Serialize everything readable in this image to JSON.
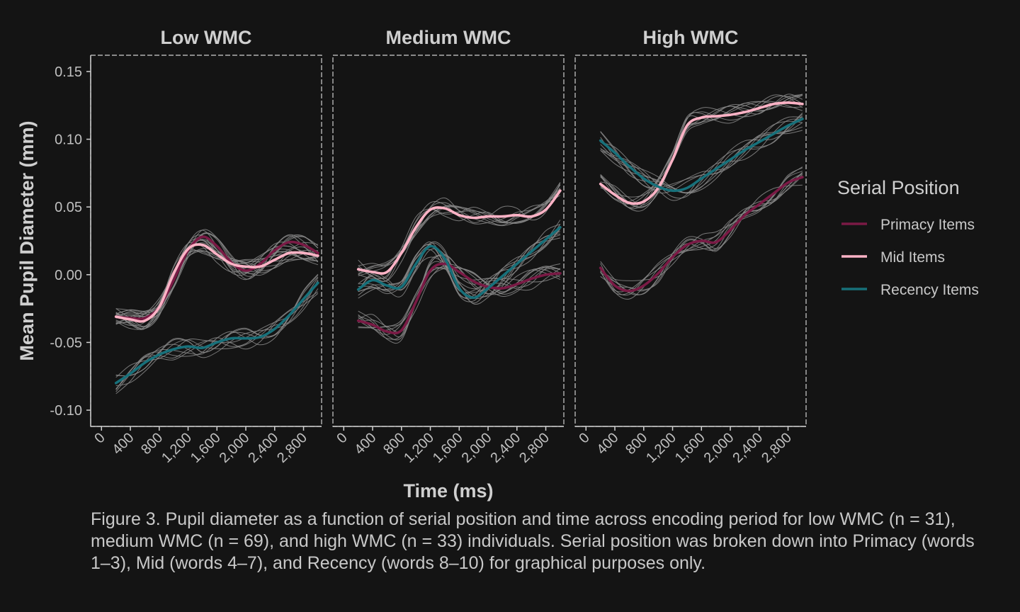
{
  "chart_data": {
    "type": "line",
    "panels": [
      {
        "title": "Low WMC",
        "series": [
          {
            "name": "Primacy Items",
            "x": [
              200,
              400,
              600,
              800,
              1000,
              1200,
              1400,
              1600,
              1800,
              2000,
              2200,
              2400,
              2600,
              2800,
              3000
            ],
            "y": [
              -0.031,
              -0.032,
              -0.032,
              -0.024,
              -0.004,
              0.018,
              0.028,
              0.021,
              0.009,
              0.003,
              0.008,
              0.018,
              0.024,
              0.022,
              0.016
            ]
          },
          {
            "name": "Mid Items",
            "x": [
              200,
              400,
              600,
              800,
              1000,
              1200,
              1400,
              1600,
              1800,
              2000,
              2200,
              2400,
              2600,
              2800,
              3000
            ],
            "y": [
              -0.031,
              -0.033,
              -0.034,
              -0.024,
              0.001,
              0.019,
              0.022,
              0.015,
              0.008,
              0.006,
              0.006,
              0.011,
              0.016,
              0.016,
              0.014
            ]
          },
          {
            "name": "Recency Items",
            "x": [
              200,
              400,
              600,
              800,
              1000,
              1200,
              1400,
              1600,
              1800,
              2000,
              2200,
              2400,
              2600,
              2800,
              3000
            ],
            "y": [
              -0.08,
              -0.073,
              -0.065,
              -0.059,
              -0.055,
              -0.053,
              -0.054,
              -0.05,
              -0.047,
              -0.047,
              -0.046,
              -0.04,
              -0.03,
              -0.018,
              -0.006
            ]
          }
        ]
      },
      {
        "title": "Medium WMC",
        "series": [
          {
            "name": "Primacy Items",
            "x": [
              200,
              400,
              600,
              800,
              1000,
              1200,
              1400,
              1600,
              1800,
              2000,
              2200,
              2400,
              2600,
              2800,
              3000
            ],
            "y": [
              -0.034,
              -0.037,
              -0.042,
              -0.041,
              -0.02,
              0.003,
              0.008,
              0.002,
              -0.005,
              -0.009,
              -0.01,
              -0.007,
              -0.003,
              0.0,
              0.001
            ]
          },
          {
            "name": "Mid Items",
            "x": [
              200,
              400,
              600,
              800,
              1000,
              1200,
              1400,
              1600,
              1800,
              2000,
              2200,
              2400,
              2600,
              2800,
              3000
            ],
            "y": [
              0.004,
              0.002,
              0.002,
              0.016,
              0.035,
              0.048,
              0.049,
              0.044,
              0.042,
              0.043,
              0.043,
              0.044,
              0.043,
              0.048,
              0.062
            ]
          },
          {
            "name": "Recency Items",
            "x": [
              200,
              400,
              600,
              800,
              1000,
              1200,
              1400,
              1600,
              1800,
              2000,
              2200,
              2400,
              2600,
              2800,
              3000
            ],
            "y": [
              -0.011,
              -0.004,
              -0.008,
              -0.009,
              0.008,
              0.021,
              0.012,
              -0.01,
              -0.017,
              -0.01,
              -0.001,
              0.008,
              0.017,
              0.026,
              0.035
            ]
          }
        ]
      },
      {
        "title": "High WMC",
        "series": [
          {
            "name": "Primacy Items",
            "x": [
              200,
              400,
              600,
              800,
              1000,
              1200,
              1400,
              1600,
              1800,
              2000,
              2200,
              2400,
              2600,
              2800,
              3000
            ],
            "y": [
              0.005,
              -0.008,
              -0.012,
              -0.008,
              0.001,
              0.013,
              0.022,
              0.025,
              0.024,
              0.033,
              0.044,
              0.052,
              0.06,
              0.068,
              0.072
            ]
          },
          {
            "name": "Mid Items",
            "x": [
              200,
              400,
              600,
              800,
              1000,
              1200,
              1400,
              1600,
              1800,
              2000,
              2200,
              2400,
              2600,
              2800,
              3000
            ],
            "y": [
              0.067,
              0.059,
              0.053,
              0.054,
              0.064,
              0.085,
              0.11,
              0.116,
              0.117,
              0.118,
              0.12,
              0.123,
              0.126,
              0.127,
              0.126
            ]
          },
          {
            "name": "Recency Items",
            "x": [
              200,
              400,
              600,
              800,
              1000,
              1200,
              1400,
              1600,
              1800,
              2000,
              2200,
              2400,
              2600,
              2800,
              3000
            ],
            "y": [
              0.099,
              0.09,
              0.08,
              0.071,
              0.065,
              0.062,
              0.064,
              0.071,
              0.078,
              0.085,
              0.092,
              0.098,
              0.104,
              0.11,
              0.115
            ]
          }
        ]
      }
    ],
    "x_ticks": [
      "0",
      "400",
      "800",
      "1,200",
      "1,600",
      "2,000",
      "2,400",
      "2,800"
    ],
    "x_tick_values": [
      0,
      400,
      800,
      1200,
      1600,
      2000,
      2400,
      2800
    ],
    "y_ticks": [
      "0.15",
      "0.10",
      "0.05",
      "0.00",
      "-0.05",
      "-0.10"
    ],
    "y_tick_values": [
      0.15,
      0.1,
      0.05,
      0.0,
      -0.05,
      -0.1
    ],
    "xlim": [
      -150,
      3050
    ],
    "ylim": [
      -0.112,
      0.162
    ],
    "xlabel": "Time (ms)",
    "ylabel": "Mean Pupil Diameter (mm)",
    "legend": {
      "title": "Serial Position",
      "placement": "right",
      "entries": [
        "Primacy Items",
        "Mid Items",
        "Recency Items"
      ]
    },
    "colors": {
      "Primacy Items": "#7a1a45",
      "Mid Items": "#ffb3c6",
      "Recency Items": "#17707a",
      "background": "#141414",
      "individual_lines": "#8a8a8a"
    },
    "grid": false
  },
  "caption": "Figure 3. Pupil diameter as a function of serial position and time across encoding period for low WMC (n = 31), medium WMC (n = 69), and high WMC (n = 33) individuals. Serial position was broken down into Primacy (words 1–3), Mid (words 4–7), and Recency (words 8–10) for graphical purposes only."
}
